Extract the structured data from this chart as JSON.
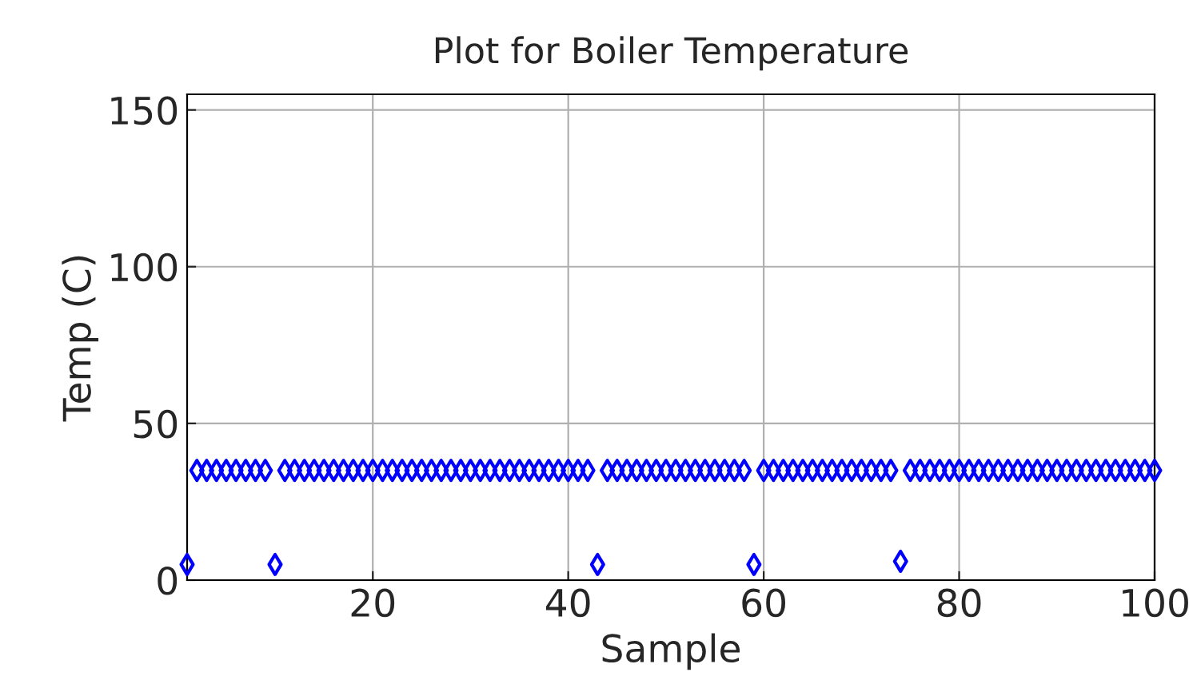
{
  "chart_data": {
    "type": "scatter",
    "title": "Plot for Boiler Temperature",
    "xlabel": "Sample",
    "ylabel": "Temp (C)",
    "x": [
      1,
      2,
      3,
      4,
      5,
      6,
      7,
      8,
      9,
      10,
      11,
      12,
      13,
      14,
      15,
      16,
      17,
      18,
      19,
      20,
      21,
      22,
      23,
      24,
      25,
      26,
      27,
      28,
      29,
      30,
      31,
      32,
      33,
      34,
      35,
      36,
      37,
      38,
      39,
      40,
      41,
      42,
      43,
      44,
      45,
      46,
      47,
      48,
      49,
      50,
      51,
      52,
      53,
      54,
      55,
      56,
      57,
      58,
      59,
      60,
      61,
      62,
      63,
      64,
      65,
      66,
      67,
      68,
      69,
      70,
      71,
      72,
      73,
      74,
      75,
      76,
      77,
      78,
      79,
      80,
      81,
      82,
      83,
      84,
      85,
      86,
      87,
      88,
      89,
      90,
      91,
      92,
      93,
      94,
      95,
      96,
      97,
      98,
      99,
      100
    ],
    "series": [
      {
        "color": "#0000ff",
        "values": [
          5,
          35,
          35,
          35,
          35,
          35,
          35,
          35,
          35,
          5,
          35,
          35,
          35,
          35,
          35,
          35,
          35,
          35,
          35,
          35,
          35,
          35,
          35,
          35,
          35,
          35,
          35,
          35,
          35,
          35,
          35,
          35,
          35,
          35,
          35,
          35,
          35,
          35,
          35,
          35,
          35,
          35,
          5,
          35,
          35,
          35,
          35,
          35,
          35,
          35,
          35,
          35,
          35,
          35,
          35,
          35,
          35,
          35,
          5,
          35,
          35,
          35,
          35,
          35,
          35,
          35,
          35,
          35,
          35,
          35,
          35,
          35,
          35,
          6,
          35,
          35,
          35,
          35,
          35,
          35,
          35,
          35,
          35,
          35,
          35,
          35,
          35,
          35,
          35,
          35,
          35,
          35,
          35,
          35,
          35,
          35,
          35,
          35,
          35,
          35
        ]
      }
    ],
    "marker": "diamond",
    "xlim": [
      1,
      100
    ],
    "xticks": [
      20,
      40,
      60,
      80,
      100
    ],
    "ylim": [
      0,
      155
    ],
    "yticks": [
      0,
      50,
      100,
      150
    ],
    "grid": true
  }
}
